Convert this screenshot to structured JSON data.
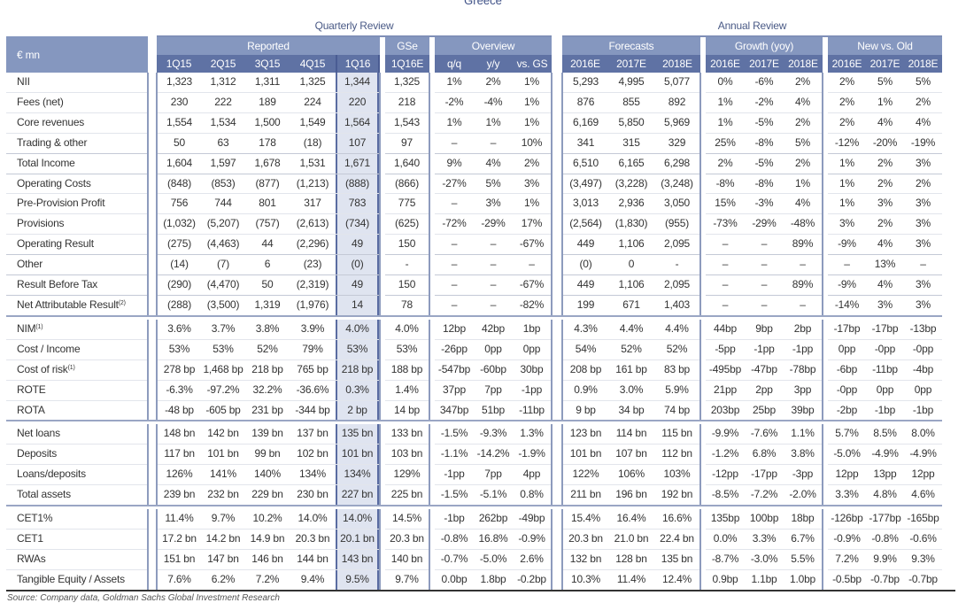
{
  "page_title": "Greece",
  "band": {
    "quarterly": "Quarterly Review",
    "annual": "Annual Review"
  },
  "corner_label": "€ mn",
  "groups": {
    "reported": "Reported",
    "gse": "GSe",
    "overview": "Overview",
    "forecasts": "Forecasts",
    "growth": "Growth (yoy)",
    "newold": "New vs. Old"
  },
  "columns": [
    "1Q15",
    "2Q15",
    "3Q15",
    "4Q15",
    "1Q16",
    "1Q16E",
    "q/q",
    "y/y",
    "vs. GS",
    "2016E",
    "2017E",
    "2018E",
    "2016E",
    "2017E",
    "2018E",
    "2016E",
    "2017E",
    "2018E"
  ],
  "rows": [
    {
      "label": "NII",
      "cells": [
        "1,323",
        "1,312",
        "1,311",
        "1,325",
        "1,344",
        "1,325",
        "1%",
        "2%",
        "1%",
        "5,293",
        "4,995",
        "5,077",
        "0%",
        "-6%",
        "2%",
        "2%",
        "5%",
        "5%"
      ]
    },
    {
      "label": "Fees (net)",
      "cells": [
        "230",
        "222",
        "189",
        "224",
        "220",
        "218",
        "-2%",
        "-4%",
        "1%",
        "876",
        "855",
        "892",
        "1%",
        "-2%",
        "4%",
        "2%",
        "1%",
        "2%"
      ]
    },
    {
      "label": "Core revenues",
      "cells": [
        "1,554",
        "1,534",
        "1,500",
        "1,549",
        "1,564",
        "1,543",
        "1%",
        "1%",
        "1%",
        "6,169",
        "5,850",
        "5,969",
        "1%",
        "-5%",
        "2%",
        "2%",
        "4%",
        "4%"
      ]
    },
    {
      "label": "Trading & other",
      "cells": [
        "50",
        "63",
        "178",
        "(18)",
        "107",
        "97",
        "–",
        "–",
        "10%",
        "341",
        "315",
        "329",
        "25%",
        "-8%",
        "5%",
        "-12%",
        "-20%",
        "-19%"
      ]
    },
    {
      "label": "Total Income",
      "cells": [
        "1,604",
        "1,597",
        "1,678",
        "1,531",
        "1,671",
        "1,640",
        "9%",
        "4%",
        "2%",
        "6,510",
        "6,165",
        "6,298",
        "2%",
        "-5%",
        "2%",
        "1%",
        "2%",
        "3%"
      ]
    },
    {
      "label": "Operating Costs",
      "cells": [
        "(848)",
        "(853)",
        "(877)",
        "(1,213)",
        "(888)",
        "(866)",
        "-27%",
        "5%",
        "3%",
        "(3,497)",
        "(3,228)",
        "(3,248)",
        "-8%",
        "-8%",
        "1%",
        "1%",
        "2%",
        "2%"
      ]
    },
    {
      "label": "Pre-Provision Profit",
      "cells": [
        "756",
        "744",
        "801",
        "317",
        "783",
        "775",
        "–",
        "3%",
        "1%",
        "3,013",
        "2,936",
        "3,050",
        "15%",
        "-3%",
        "4%",
        "1%",
        "3%",
        "3%"
      ]
    },
    {
      "label": "Provisions",
      "cells": [
        "(1,032)",
        "(5,207)",
        "(757)",
        "(2,613)",
        "(734)",
        "(625)",
        "-72%",
        "-29%",
        "17%",
        "(2,564)",
        "(1,830)",
        "(955)",
        "-73%",
        "-29%",
        "-48%",
        "3%",
        "2%",
        "3%"
      ]
    },
    {
      "label": "Operating Result",
      "cells": [
        "(275)",
        "(4,463)",
        "44",
        "(2,296)",
        "49",
        "150",
        "–",
        "–",
        "-67%",
        "449",
        "1,106",
        "2,095",
        "–",
        "–",
        "89%",
        "-9%",
        "4%",
        "3%"
      ]
    },
    {
      "label": "Other",
      "cells": [
        "(14)",
        "(7)",
        "6",
        "(23)",
        "(0)",
        "-",
        "–",
        "–",
        "–",
        "(0)",
        "0",
        "-",
        "–",
        "–",
        "–",
        "–",
        "13%",
        "–"
      ]
    },
    {
      "label": "Result Before Tax",
      "cells": [
        "(290)",
        "(4,470)",
        "50",
        "(2,319)",
        "49",
        "150",
        "–",
        "–",
        "-67%",
        "449",
        "1,106",
        "2,095",
        "–",
        "–",
        "89%",
        "-9%",
        "4%",
        "3%"
      ]
    },
    {
      "label": "Net Attributable Result",
      "sup": "(2)",
      "cells": [
        "(288)",
        "(3,500)",
        "1,319",
        "(1,976)",
        "14",
        "78",
        "–",
        "–",
        "-82%",
        "199",
        "671",
        "1,403",
        "–",
        "–",
        "–",
        "-14%",
        "3%",
        "3%"
      ]
    },
    {
      "label": "NIM",
      "sup": "(1)",
      "cells": [
        "3.6%",
        "3.7%",
        "3.8%",
        "3.9%",
        "4.0%",
        "4.0%",
        "12bp",
        "42bp",
        "1bp",
        "4.3%",
        "4.4%",
        "4.4%",
        "44bp",
        "9bp",
        "2bp",
        "-17bp",
        "-17bp",
        "-13bp"
      ]
    },
    {
      "label": "Cost / Income",
      "cells": [
        "53%",
        "53%",
        "52%",
        "79%",
        "53%",
        "53%",
        "-26pp",
        "0pp",
        "0pp",
        "54%",
        "52%",
        "52%",
        "-5pp",
        "-1pp",
        "-1pp",
        "0pp",
        "-0pp",
        "-0pp"
      ]
    },
    {
      "label": "Cost of risk",
      "sup": "(1)",
      "cells": [
        "278 bp",
        "1,468 bp",
        "218 bp",
        "765 bp",
        "218 bp",
        "188 bp",
        "-547bp",
        "-60bp",
        "30bp",
        "208 bp",
        "161 bp",
        "83 bp",
        "-495bp",
        "-47bp",
        "-78bp",
        "-6bp",
        "-11bp",
        "-4bp"
      ]
    },
    {
      "label": "ROTE",
      "cells": [
        "-6.3%",
        "-97.2%",
        "32.2%",
        "-36.6%",
        "0.3%",
        "1.4%",
        "37pp",
        "7pp",
        "-1pp",
        "0.9%",
        "3.0%",
        "5.9%",
        "21pp",
        "2pp",
        "3pp",
        "-0pp",
        "0pp",
        "0pp"
      ]
    },
    {
      "label": "ROTA",
      "cells": [
        "-48 bp",
        "-605 bp",
        "231 bp",
        "-344 bp",
        "2 bp",
        "14 bp",
        "347bp",
        "51bp",
        "-11bp",
        "9 bp",
        "34 bp",
        "74 bp",
        "203bp",
        "25bp",
        "39bp",
        "-2bp",
        "-1bp",
        "-1bp"
      ]
    },
    {
      "label": "Net loans",
      "cells": [
        "148 bn",
        "142 bn",
        "139 bn",
        "137 bn",
        "135 bn",
        "133 bn",
        "-1.5%",
        "-9.3%",
        "1.3%",
        "123 bn",
        "114 bn",
        "115 bn",
        "-9.9%",
        "-7.6%",
        "1.1%",
        "5.7%",
        "8.5%",
        "8.0%"
      ]
    },
    {
      "label": "Deposits",
      "cells": [
        "117 bn",
        "101 bn",
        "99 bn",
        "102 bn",
        "101 bn",
        "103 bn",
        "-1.1%",
        "-14.2%",
        "-1.9%",
        "101 bn",
        "107 bn",
        "112 bn",
        "-1.2%",
        "6.8%",
        "3.8%",
        "-5.0%",
        "-4.9%",
        "-4.9%"
      ]
    },
    {
      "label": "Loans/deposits",
      "cells": [
        "126%",
        "141%",
        "140%",
        "134%",
        "134%",
        "129%",
        "-1pp",
        "7pp",
        "4pp",
        "122%",
        "106%",
        "103%",
        "-12pp",
        "-17pp",
        "-3pp",
        "12pp",
        "13pp",
        "12pp"
      ]
    },
    {
      "label": "Total assets",
      "cells": [
        "239 bn",
        "232 bn",
        "229 bn",
        "230 bn",
        "227 bn",
        "225 bn",
        "-1.5%",
        "-5.1%",
        "0.8%",
        "211 bn",
        "196 bn",
        "192 bn",
        "-8.5%",
        "-7.2%",
        "-2.0%",
        "3.3%",
        "4.8%",
        "4.6%"
      ]
    },
    {
      "label": "CET1%",
      "cells": [
        "11.4%",
        "9.7%",
        "10.2%",
        "14.0%",
        "14.0%",
        "14.5%",
        "-1bp",
        "262bp",
        "-49bp",
        "15.4%",
        "16.4%",
        "16.6%",
        "135bp",
        "100bp",
        "18bp",
        "-126bp",
        "-177bp",
        "-165bp"
      ]
    },
    {
      "label": "CET1",
      "cells": [
        "17.2 bn",
        "14.2 bn",
        "14.9 bn",
        "20.3 bn",
        "20.1 bn",
        "20.3 bn",
        "-0.8%",
        "16.8%",
        "-0.9%",
        "20.3 bn",
        "21.0 bn",
        "22.4 bn",
        "0.0%",
        "3.3%",
        "6.7%",
        "-0.9%",
        "-0.8%",
        "-0.6%"
      ]
    },
    {
      "label": "RWAs",
      "cells": [
        "151 bn",
        "147 bn",
        "146 bn",
        "144 bn",
        "143 bn",
        "140 bn",
        "-0.7%",
        "-5.0%",
        "2.6%",
        "132 bn",
        "128 bn",
        "135 bn",
        "-8.7%",
        "-3.0%",
        "5.5%",
        "7.2%",
        "9.9%",
        "9.3%"
      ]
    },
    {
      "label": "Tangible Equity / Assets",
      "cells": [
        "7.6%",
        "6.2%",
        "7.2%",
        "9.4%",
        "9.5%",
        "9.7%",
        "0.0bp",
        "1.8bp",
        "-0.2bp",
        "10.3%",
        "11.4%",
        "12.4%",
        "0.9bp",
        "1.1bp",
        "1.0bp",
        "-0.5bp",
        "-0.7bp",
        "-0.7bp"
      ]
    }
  ],
  "source": "Source: Company data, Goldman Sachs Global Investment Research"
}
